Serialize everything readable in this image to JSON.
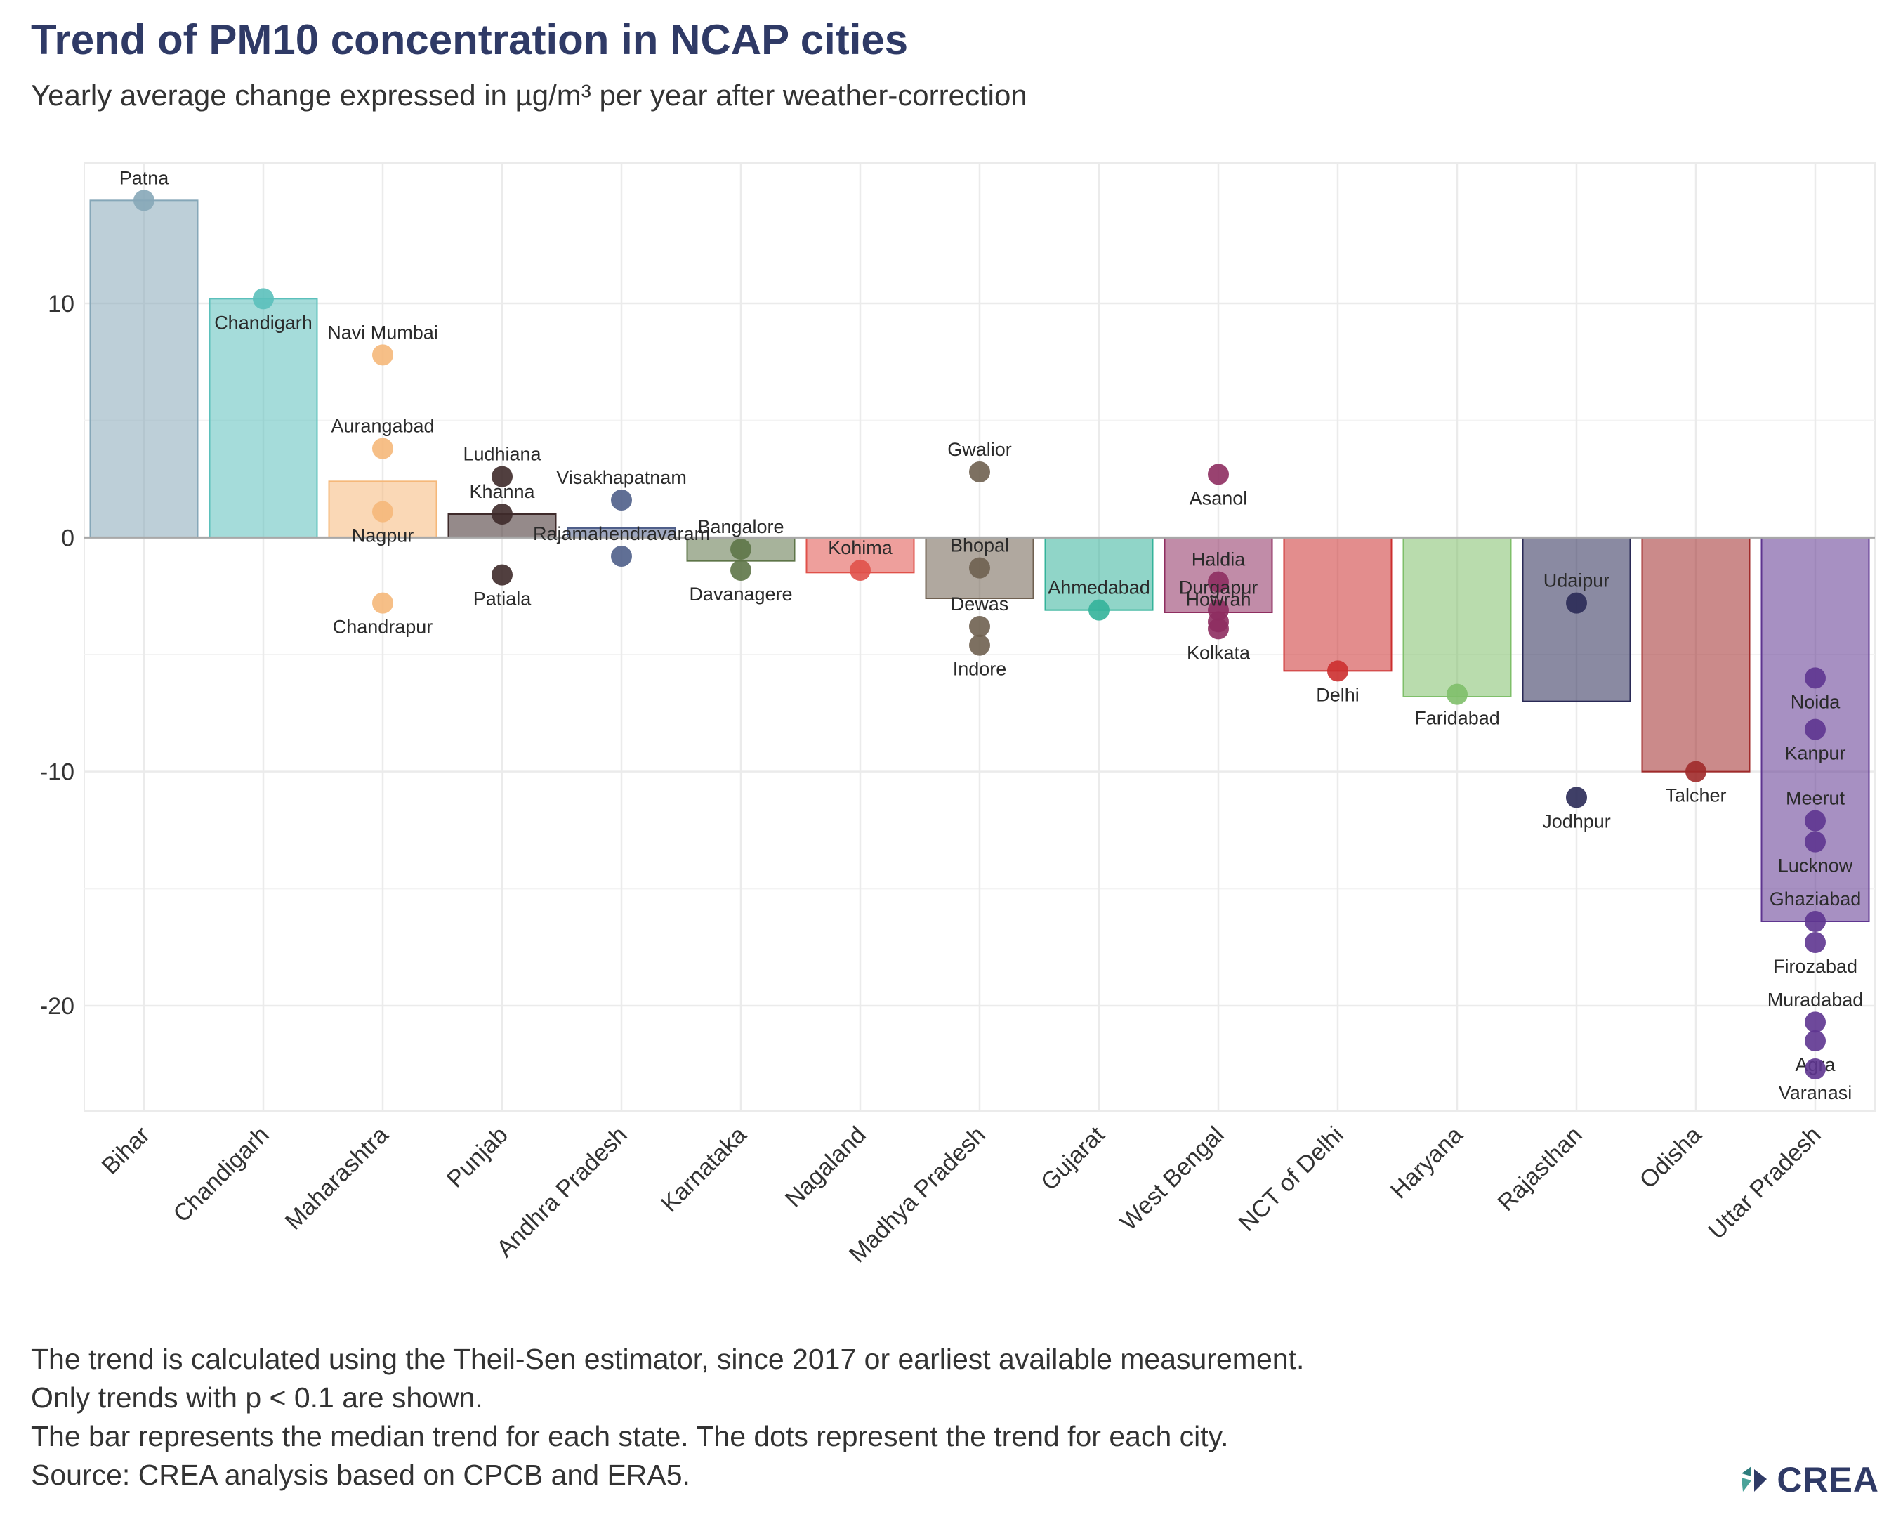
{
  "chart_data": {
    "type": "bar",
    "title": "Trend of PM10 concentration in NCAP cities",
    "subtitle": "Yearly average change expressed in µg/m³ per year after weather-correction",
    "xlabel": "",
    "ylabel": "",
    "ylim": [
      -24.5,
      16
    ],
    "yticks": [
      10,
      0,
      -10,
      -20
    ],
    "grid": true,
    "legend": "none",
    "categories": [
      "Bihar",
      "Chandigarh",
      "Maharashtra",
      "Punjab",
      "Andhra Pradesh",
      "Karnataka",
      "Nagaland",
      "Madhya Pradesh",
      "Gujarat",
      "West Bengal",
      "NCT of Delhi",
      "Haryana",
      "Rajasthan",
      "Odisha",
      "Uttar Pradesh"
    ],
    "values": [
      14.4,
      10.2,
      2.4,
      1.0,
      0.4,
      -1.0,
      -1.5,
      -2.6,
      -3.1,
      -3.2,
      -5.7,
      -6.8,
      -7.0,
      -10.0,
      -16.4
    ],
    "colors": [
      "#86a7b8",
      "#5bc0bb",
      "#f5b87a",
      "#3e2a2a",
      "#4f5f8a",
      "#5e7548",
      "#e0514a",
      "#6f6050",
      "#34b39a",
      "#8e2e60",
      "#cc2f2f",
      "#7fbf6a",
      "#2a2a56",
      "#a02a2a",
      "#5e3590"
    ],
    "cities": [
      {
        "state": "Bihar",
        "name": "Patna",
        "value": 14.4,
        "label_side": "above"
      },
      {
        "state": "Chandigarh",
        "name": "Chandigarh",
        "value": 10.2,
        "label_side": "below"
      },
      {
        "state": "Maharashtra",
        "name": "Navi Mumbai",
        "value": 7.8,
        "label_side": "above"
      },
      {
        "state": "Maharashtra",
        "name": "Aurangabad",
        "value": 3.8,
        "label_side": "above"
      },
      {
        "state": "Maharashtra",
        "name": "Nagpur",
        "value": 1.1,
        "label_side": "below"
      },
      {
        "state": "Maharashtra",
        "name": "Chandrapur",
        "value": -2.8,
        "label_side": "below"
      },
      {
        "state": "Punjab",
        "name": "Ludhiana",
        "value": 2.6,
        "label_side": "above"
      },
      {
        "state": "Punjab",
        "name": "Khanna",
        "value": 1.0,
        "label_side": "above"
      },
      {
        "state": "Punjab",
        "name": "Patiala",
        "value": -1.6,
        "label_side": "below"
      },
      {
        "state": "Andhra Pradesh",
        "name": "Visakhapatnam",
        "value": 1.6,
        "label_side": "above"
      },
      {
        "state": "Andhra Pradesh",
        "name": "Rajamahendravaram",
        "value": -0.8,
        "label_side": "above"
      },
      {
        "state": "Karnataka",
        "name": "Bangalore",
        "value": -0.5,
        "label_side": "above"
      },
      {
        "state": "Karnataka",
        "name": "Davanagere",
        "value": -1.4,
        "label_side": "below"
      },
      {
        "state": "Nagaland",
        "name": "Kohima",
        "value": -1.4,
        "label_side": "above"
      },
      {
        "state": "Madhya Pradesh",
        "name": "Gwalior",
        "value": 2.8,
        "label_side": "above"
      },
      {
        "state": "Madhya Pradesh",
        "name": "Bhopal",
        "value": -1.3,
        "label_side": "above"
      },
      {
        "state": "Madhya Pradesh",
        "name": "Dewas",
        "value": -3.8,
        "label_side": "above"
      },
      {
        "state": "Madhya Pradesh",
        "name": "Indore",
        "value": -4.6,
        "label_side": "below"
      },
      {
        "state": "Gujarat",
        "name": "Ahmedabad",
        "value": -3.1,
        "label_side": "above"
      },
      {
        "state": "West Bengal",
        "name": "Asanol",
        "value": 2.7,
        "label_side": "below"
      },
      {
        "state": "West Bengal",
        "name": "Haldia",
        "value": -1.9,
        "label_side": "above"
      },
      {
        "state": "West Bengal",
        "name": "Durgapur",
        "value": -3.1,
        "label_side": "above"
      },
      {
        "state": "West Bengal",
        "name": "Howrah",
        "value": -3.6,
        "label_side": "above"
      },
      {
        "state": "West Bengal",
        "name": "Kolkata",
        "value": -3.9,
        "label_side": "below"
      },
      {
        "state": "NCT of Delhi",
        "name": "Delhi",
        "value": -5.7,
        "label_side": "below"
      },
      {
        "state": "Haryana",
        "name": "Faridabad",
        "value": -6.7,
        "label_side": "below"
      },
      {
        "state": "Rajasthan",
        "name": "Udaipur",
        "value": -2.8,
        "label_side": "above"
      },
      {
        "state": "Rajasthan",
        "name": "Jodhpur",
        "value": -11.1,
        "label_side": "below"
      },
      {
        "state": "Odisha",
        "name": "Talcher",
        "value": -10.0,
        "label_side": "below"
      },
      {
        "state": "Uttar Pradesh",
        "name": "Noida",
        "value": -6.0,
        "label_side": "below"
      },
      {
        "state": "Uttar Pradesh",
        "name": "Kanpur",
        "value": -8.2,
        "label_side": "below"
      },
      {
        "state": "Uttar Pradesh",
        "name": "Meerut",
        "value": -12.1,
        "label_side": "above"
      },
      {
        "state": "Uttar Pradesh",
        "name": "Lucknow",
        "value": -13.0,
        "label_side": "below"
      },
      {
        "state": "Uttar Pradesh",
        "name": "Ghaziabad",
        "value": -16.4,
        "label_side": "above"
      },
      {
        "state": "Uttar Pradesh",
        "name": "Firozabad",
        "value": -17.3,
        "label_side": "below"
      },
      {
        "state": "Uttar Pradesh",
        "name": "Muradabad",
        "value": -20.7,
        "label_side": "above"
      },
      {
        "state": "Uttar Pradesh",
        "name": "Agra",
        "value": -21.5,
        "label_side": "below"
      },
      {
        "state": "Uttar Pradesh",
        "name": "Varanasi",
        "value": -22.7,
        "label_side": "below"
      }
    ]
  },
  "caption_lines": [
    "The trend is calculated using the Theil-Sen estimator, since 2017 or earliest available measurement.",
    "Only trends with p < 0.1 are shown.",
    "The bar represents the median trend for each state. The dots represent the trend for each city.",
    "Source: CREA analysis based on CPCB and ERA5."
  ],
  "logo": {
    "text": "CREA",
    "colors": [
      "#2e7d7d",
      "#4aa39a",
      "#2f3a66"
    ]
  }
}
